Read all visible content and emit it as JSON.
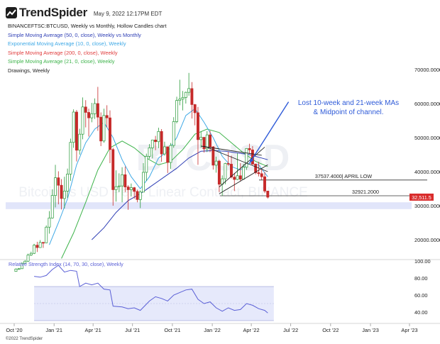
{
  "header": {
    "brand": "TrendSpider",
    "date": "May 9, 2022 12:17PM EDT"
  },
  "legend": {
    "symbol_line": "BINANCEFTSC:BTCUSD, Weekly vs Monthly, Hollow Candles chart",
    "indicators": [
      {
        "label": "Simple Moving Average (50, 0, close), Weekly vs Monthly",
        "color": "#2f3fb5"
      },
      {
        "label": "Exponential Moving Average (10, 0, close), Weekly",
        "color": "#3fa9e6"
      },
      {
        "label": "Simple Moving Average (200, 0, close), Weekly",
        "color": "#e03c3c"
      },
      {
        "label": "Simple Moving Average (21, 0, close), Weekly",
        "color": "#3db34a"
      },
      {
        "label": "Drawings, Weekly",
        "color": "#222222"
      }
    ]
  },
  "watermark": {
    "main": "BTCUSD",
    "sub": "Bitcoin vs USD Perp. Linear Contract, BINANCE"
  },
  "annotation": {
    "text_line1": "Lost 10-week and 21-week MAs",
    "text_line2": "& Midpoint of channel.",
    "color": "#2f5bd8"
  },
  "levels": [
    {
      "value": 37537.4,
      "label": "37537.4000| APRIL LOW"
    },
    {
      "value": 32921.2,
      "label": "32921.2000"
    }
  ],
  "last_price": {
    "label": "32,511.5",
    "value": 32511.5,
    "color": "#d92b2b"
  },
  "rsi_title": "Relative Strength Index (14, 70, 30, close), Weekly",
  "copyright": "©2022 TrendSpider",
  "colors": {
    "up": "#2a9a3a",
    "down": "#c62a2a",
    "sma50": "#2f3fb5",
    "ema10": "#3fa9e6",
    "sma21": "#3db34a",
    "rsi": "#5a5fd6",
    "band": "#e1e5fa"
  },
  "chart_data": {
    "type": "candlestick",
    "timeframe": "Weekly",
    "x_ticks": [
      "Oct '20",
      "Jan '21",
      "Apr '21",
      "Jul '21",
      "Oct '21",
      "Jan '22",
      "Apr '22",
      "Jul '22",
      "Oct '22",
      "Jan '23",
      "Apr '23"
    ],
    "price_ticks": [
      "70000.0000",
      "60000.0000",
      "50000.0000",
      "40000.0000",
      "30000.0000",
      "20000.0000"
    ],
    "price_tick_values": [
      70000,
      60000,
      50000,
      40000,
      30000,
      20000
    ],
    "ylim": [
      10000,
      77000
    ],
    "rsi_ticks": [
      "100.00",
      "80.00",
      "60.00",
      "40.00"
    ],
    "rsi_tick_values": [
      100,
      80,
      60,
      40
    ],
    "rsi_ylim": [
      30,
      100
    ],
    "rsi_band": [
      30,
      70
    ],
    "support_zone": [
      29000,
      31000
    ],
    "candles": [
      {
        "x": "2020-10-05",
        "o": 10700,
        "h": 11600,
        "l": 10600,
        "c": 11400
      },
      {
        "x": "2020-10-12",
        "o": 11400,
        "h": 11700,
        "l": 11200,
        "c": 11500
      },
      {
        "x": "2020-10-19",
        "o": 11500,
        "h": 13300,
        "l": 11400,
        "c": 13100
      },
      {
        "x": "2020-10-26",
        "o": 13100,
        "h": 14000,
        "l": 12900,
        "c": 13700
      },
      {
        "x": "2020-11-02",
        "o": 13700,
        "h": 15900,
        "l": 13500,
        "c": 15500
      },
      {
        "x": "2020-11-09",
        "o": 15500,
        "h": 16500,
        "l": 15200,
        "c": 16000
      },
      {
        "x": "2020-11-16",
        "o": 16000,
        "h": 18800,
        "l": 15800,
        "c": 18400
      },
      {
        "x": "2020-11-23",
        "o": 18400,
        "h": 19400,
        "l": 16400,
        "c": 17700
      },
      {
        "x": "2020-11-30",
        "o": 17700,
        "h": 19900,
        "l": 17600,
        "c": 19200
      },
      {
        "x": "2020-12-07",
        "o": 19200,
        "h": 19400,
        "l": 17600,
        "c": 19100
      },
      {
        "x": "2020-12-14",
        "o": 19100,
        "h": 24200,
        "l": 19000,
        "c": 23700
      },
      {
        "x": "2020-12-21",
        "o": 23700,
        "h": 28400,
        "l": 21800,
        "c": 26400
      },
      {
        "x": "2020-12-28",
        "o": 26400,
        "h": 34800,
        "l": 26200,
        "c": 33000
      },
      {
        "x": "2021-01-04",
        "o": 33000,
        "h": 42000,
        "l": 29500,
        "c": 38200
      },
      {
        "x": "2021-01-11",
        "o": 38200,
        "h": 40100,
        "l": 30400,
        "c": 36000
      },
      {
        "x": "2021-01-18",
        "o": 36000,
        "h": 37800,
        "l": 28900,
        "c": 32100
      },
      {
        "x": "2021-01-25",
        "o": 32100,
        "h": 38500,
        "l": 29200,
        "c": 34300
      },
      {
        "x": "2021-02-01",
        "o": 34300,
        "h": 40900,
        "l": 32300,
        "c": 39300
      },
      {
        "x": "2021-02-08",
        "o": 39300,
        "h": 49700,
        "l": 37300,
        "c": 48600
      },
      {
        "x": "2021-02-15",
        "o": 48600,
        "h": 58300,
        "l": 47000,
        "c": 57500
      },
      {
        "x": "2021-02-22",
        "o": 57500,
        "h": 58100,
        "l": 43000,
        "c": 46300
      },
      {
        "x": "2021-03-01",
        "o": 46300,
        "h": 52600,
        "l": 45000,
        "c": 51000
      },
      {
        "x": "2021-03-08",
        "o": 51000,
        "h": 61800,
        "l": 49500,
        "c": 59000
      },
      {
        "x": "2021-03-15",
        "o": 59000,
        "h": 61000,
        "l": 53000,
        "c": 57400
      },
      {
        "x": "2021-03-22",
        "o": 57400,
        "h": 58500,
        "l": 50300,
        "c": 55800
      },
      {
        "x": "2021-03-29",
        "o": 55800,
        "h": 60200,
        "l": 54500,
        "c": 57000
      },
      {
        "x": "2021-04-05",
        "o": 57000,
        "h": 61500,
        "l": 55500,
        "c": 60000
      },
      {
        "x": "2021-04-12",
        "o": 60000,
        "h": 64900,
        "l": 52000,
        "c": 56000
      },
      {
        "x": "2021-04-19",
        "o": 56000,
        "h": 57400,
        "l": 47500,
        "c": 49000
      },
      {
        "x": "2021-04-26",
        "o": 49000,
        "h": 58500,
        "l": 48500,
        "c": 56500
      },
      {
        "x": "2021-05-03",
        "o": 56500,
        "h": 59500,
        "l": 53000,
        "c": 55800
      },
      {
        "x": "2021-05-10",
        "o": 55800,
        "h": 58000,
        "l": 42500,
        "c": 46500
      },
      {
        "x": "2021-05-17",
        "o": 46500,
        "h": 47000,
        "l": 30000,
        "c": 34700
      },
      {
        "x": "2021-05-24",
        "o": 34700,
        "h": 40400,
        "l": 31200,
        "c": 35600
      },
      {
        "x": "2021-05-31",
        "o": 35600,
        "h": 39500,
        "l": 34000,
        "c": 35800
      },
      {
        "x": "2021-06-07",
        "o": 35800,
        "h": 41300,
        "l": 31000,
        "c": 39100
      },
      {
        "x": "2021-06-14",
        "o": 39100,
        "h": 41500,
        "l": 34000,
        "c": 35500
      },
      {
        "x": "2021-06-21",
        "o": 35500,
        "h": 36000,
        "l": 28800,
        "c": 34700
      },
      {
        "x": "2021-06-28",
        "o": 34700,
        "h": 36500,
        "l": 32700,
        "c": 35300
      },
      {
        "x": "2021-07-05",
        "o": 35300,
        "h": 35500,
        "l": 32100,
        "c": 34200
      },
      {
        "x": "2021-07-12",
        "o": 34200,
        "h": 34700,
        "l": 31000,
        "c": 31800
      },
      {
        "x": "2021-07-19",
        "o": 31800,
        "h": 34500,
        "l": 29300,
        "c": 34000
      },
      {
        "x": "2021-07-26",
        "o": 34000,
        "h": 42500,
        "l": 34000,
        "c": 39800
      },
      {
        "x": "2021-08-02",
        "o": 39800,
        "h": 45300,
        "l": 37300,
        "c": 44500
      },
      {
        "x": "2021-08-09",
        "o": 44500,
        "h": 48100,
        "l": 43800,
        "c": 47000
      },
      {
        "x": "2021-08-16",
        "o": 47000,
        "h": 49400,
        "l": 43900,
        "c": 49300
      },
      {
        "x": "2021-08-23",
        "o": 49300,
        "h": 50500,
        "l": 46300,
        "c": 48800
      },
      {
        "x": "2021-08-30",
        "o": 48800,
        "h": 52900,
        "l": 46900,
        "c": 51800
      },
      {
        "x": "2021-09-06",
        "o": 51800,
        "h": 52500,
        "l": 42900,
        "c": 45200
      },
      {
        "x": "2021-09-13",
        "o": 45200,
        "h": 48800,
        "l": 44700,
        "c": 47300
      },
      {
        "x": "2021-09-20",
        "o": 47300,
        "h": 47300,
        "l": 39600,
        "c": 42700
      },
      {
        "x": "2021-09-27",
        "o": 42700,
        "h": 48400,
        "l": 40800,
        "c": 47700
      },
      {
        "x": "2021-10-04",
        "o": 47700,
        "h": 56000,
        "l": 47000,
        "c": 54700
      },
      {
        "x": "2021-10-11",
        "o": 54700,
        "h": 62000,
        "l": 54200,
        "c": 60900
      },
      {
        "x": "2021-10-18",
        "o": 60900,
        "h": 67000,
        "l": 59500,
        "c": 61300
      },
      {
        "x": "2021-10-25",
        "o": 61300,
        "h": 63700,
        "l": 58000,
        "c": 61800
      },
      {
        "x": "2021-11-01",
        "o": 61800,
        "h": 63500,
        "l": 60000,
        "c": 63300
      },
      {
        "x": "2021-11-08",
        "o": 63300,
        "h": 69000,
        "l": 62300,
        "c": 64400
      },
      {
        "x": "2021-11-15",
        "o": 64400,
        "h": 66300,
        "l": 55600,
        "c": 59700
      },
      {
        "x": "2021-11-22",
        "o": 59700,
        "h": 59900,
        "l": 53600,
        "c": 57300
      },
      {
        "x": "2021-11-29",
        "o": 57300,
        "h": 59000,
        "l": 42000,
        "c": 49400
      },
      {
        "x": "2021-12-06",
        "o": 49400,
        "h": 51900,
        "l": 47000,
        "c": 50100
      },
      {
        "x": "2021-12-13",
        "o": 50100,
        "h": 49600,
        "l": 45600,
        "c": 46700
      },
      {
        "x": "2021-12-20",
        "o": 46700,
        "h": 51900,
        "l": 45800,
        "c": 50800
      },
      {
        "x": "2021-12-27",
        "o": 50800,
        "h": 52000,
        "l": 45700,
        "c": 47300
      },
      {
        "x": "2022-01-03",
        "o": 47300,
        "h": 47500,
        "l": 40600,
        "c": 41900
      },
      {
        "x": "2022-01-10",
        "o": 41900,
        "h": 44400,
        "l": 39700,
        "c": 43100
      },
      {
        "x": "2022-01-17",
        "o": 43100,
        "h": 43500,
        "l": 34000,
        "c": 36300
      },
      {
        "x": "2022-01-24",
        "o": 36300,
        "h": 38900,
        "l": 32900,
        "c": 37900
      },
      {
        "x": "2022-01-31",
        "o": 37900,
        "h": 42600,
        "l": 36300,
        "c": 42400
      },
      {
        "x": "2022-02-07",
        "o": 42400,
        "h": 45800,
        "l": 41700,
        "c": 42200
      },
      {
        "x": "2022-02-14",
        "o": 42200,
        "h": 44700,
        "l": 38000,
        "c": 38400
      },
      {
        "x": "2022-02-21",
        "o": 38400,
        "h": 39600,
        "l": 34300,
        "c": 37700
      },
      {
        "x": "2022-02-28",
        "o": 37700,
        "h": 45400,
        "l": 37500,
        "c": 38800
      },
      {
        "x": "2022-03-07",
        "o": 38800,
        "h": 42500,
        "l": 37100,
        "c": 37800
      },
      {
        "x": "2022-03-14",
        "o": 37800,
        "h": 42300,
        "l": 37600,
        "c": 41300
      },
      {
        "x": "2022-03-21",
        "o": 41300,
        "h": 46900,
        "l": 40500,
        "c": 46800
      },
      {
        "x": "2022-03-28",
        "o": 46800,
        "h": 48200,
        "l": 45200,
        "c": 46400
      },
      {
        "x": "2022-04-04",
        "o": 46400,
        "h": 47500,
        "l": 42000,
        "c": 42200
      },
      {
        "x": "2022-04-11",
        "o": 42200,
        "h": 42400,
        "l": 39200,
        "c": 39700
      },
      {
        "x": "2022-04-18",
        "o": 39700,
        "h": 42900,
        "l": 38600,
        "c": 39400
      },
      {
        "x": "2022-04-25",
        "o": 39400,
        "h": 40800,
        "l": 37600,
        "c": 38500
      },
      {
        "x": "2022-05-02",
        "o": 38500,
        "h": 39900,
        "l": 33700,
        "c": 34300
      },
      {
        "x": "2022-05-09",
        "o": 34300,
        "h": 34400,
        "l": 32100,
        "c": 32500
      }
    ],
    "sma50": [
      {
        "x": "2021-03-29",
        "y": 20000
      },
      {
        "x": "2021-04-26",
        "y": 23500
      },
      {
        "x": "2021-05-24",
        "y": 28000
      },
      {
        "x": "2021-06-21",
        "y": 31500
      },
      {
        "x": "2021-07-19",
        "y": 33500
      },
      {
        "x": "2021-08-16",
        "y": 36000
      },
      {
        "x": "2021-09-13",
        "y": 38500
      },
      {
        "x": "2021-10-11",
        "y": 41000
      },
      {
        "x": "2021-11-08",
        "y": 44000
      },
      {
        "x": "2021-12-06",
        "y": 46000
      },
      {
        "x": "2022-01-03",
        "y": 46200
      },
      {
        "x": "2022-01-31",
        "y": 46000
      },
      {
        "x": "2022-02-28",
        "y": 45500
      },
      {
        "x": "2022-03-28",
        "y": 45000
      },
      {
        "x": "2022-04-25",
        "y": 44000
      },
      {
        "x": "2022-05-09",
        "y": 43500
      }
    ],
    "ema10": [
      {
        "x": "2020-12-21",
        "y": 18500
      },
      {
        "x": "2021-01-11",
        "y": 25000
      },
      {
        "x": "2021-02-01",
        "y": 32000
      },
      {
        "x": "2021-02-22",
        "y": 42000
      },
      {
        "x": "2021-03-15",
        "y": 48500
      },
      {
        "x": "2021-04-05",
        "y": 52500
      },
      {
        "x": "2021-04-26",
        "y": 54500
      },
      {
        "x": "2021-05-17",
        "y": 50000
      },
      {
        "x": "2021-06-07",
        "y": 43500
      },
      {
        "x": "2021-06-28",
        "y": 38500
      },
      {
        "x": "2021-07-19",
        "y": 35000
      },
      {
        "x": "2021-08-09",
        "y": 38500
      },
      {
        "x": "2021-08-30",
        "y": 44000
      },
      {
        "x": "2021-09-20",
        "y": 46000
      },
      {
        "x": "2021-10-11",
        "y": 50000
      },
      {
        "x": "2021-11-01",
        "y": 56500
      },
      {
        "x": "2021-11-22",
        "y": 58500
      },
      {
        "x": "2021-12-13",
        "y": 54500
      },
      {
        "x": "2022-01-03",
        "y": 50000
      },
      {
        "x": "2022-01-24",
        "y": 44500
      },
      {
        "x": "2022-02-14",
        "y": 41500
      },
      {
        "x": "2022-03-07",
        "y": 40500
      },
      {
        "x": "2022-03-28",
        "y": 42500
      },
      {
        "x": "2022-04-18",
        "y": 42000
      },
      {
        "x": "2022-05-09",
        "y": 38500
      }
    ],
    "sma21": [
      {
        "x": "2021-01-18",
        "y": 14500
      },
      {
        "x": "2021-02-15",
        "y": 22000
      },
      {
        "x": "2021-03-15",
        "y": 31000
      },
      {
        "x": "2021-04-12",
        "y": 40500
      },
      {
        "x": "2021-05-10",
        "y": 47000
      },
      {
        "x": "2021-06-07",
        "y": 49000
      },
      {
        "x": "2021-07-05",
        "y": 47000
      },
      {
        "x": "2021-08-02",
        "y": 44000
      },
      {
        "x": "2021-08-30",
        "y": 42000
      },
      {
        "x": "2021-09-27",
        "y": 43000
      },
      {
        "x": "2021-10-25",
        "y": 46500
      },
      {
        "x": "2021-11-22",
        "y": 51000
      },
      {
        "x": "2021-12-20",
        "y": 52500
      },
      {
        "x": "2022-01-17",
        "y": 51500
      },
      {
        "x": "2022-02-14",
        "y": 48500
      },
      {
        "x": "2022-03-14",
        "y": 45500
      },
      {
        "x": "2022-04-11",
        "y": 43000
      },
      {
        "x": "2022-05-09",
        "y": 41500
      }
    ],
    "channel_lines": [
      {
        "x1": "2021-12-06",
        "y1": 47500,
        "x2": "2022-04-25",
        "y2": 44800
      },
      {
        "x1": "2022-01-17",
        "y1": 35500,
        "x2": "2022-05-02",
        "y2": 47200
      },
      {
        "x1": "2022-01-17",
        "y1": 33500,
        "x2": "2022-05-09",
        "y2": 42000
      },
      {
        "x1": "2021-12-13",
        "y1": 47500,
        "x2": "2022-05-09",
        "y2": 40000
      }
    ],
    "arrow": {
      "x1": "2022-06-26",
      "y1": 60500,
      "x2": "2022-03-28",
      "y2": 42500
    },
    "rsi": [
      {
        "x": "2020-11-16",
        "y": 82
      },
      {
        "x": "2020-11-30",
        "y": 81
      },
      {
        "x": "2020-12-14",
        "y": 83
      },
      {
        "x": "2020-12-28",
        "y": 90
      },
      {
        "x": "2021-01-11",
        "y": 95
      },
      {
        "x": "2021-01-25",
        "y": 87
      },
      {
        "x": "2021-02-08",
        "y": 89
      },
      {
        "x": "2021-02-22",
        "y": 88
      },
      {
        "x": "2021-03-01",
        "y": 70
      },
      {
        "x": "2021-03-15",
        "y": 74
      },
      {
        "x": "2021-03-29",
        "y": 72
      },
      {
        "x": "2021-04-12",
        "y": 74
      },
      {
        "x": "2021-04-26",
        "y": 67
      },
      {
        "x": "2021-05-10",
        "y": 66
      },
      {
        "x": "2021-05-17",
        "y": 47
      },
      {
        "x": "2021-06-07",
        "y": 46
      },
      {
        "x": "2021-06-21",
        "y": 44
      },
      {
        "x": "2021-07-05",
        "y": 45
      },
      {
        "x": "2021-07-19",
        "y": 42
      },
      {
        "x": "2021-08-09",
        "y": 53
      },
      {
        "x": "2021-08-23",
        "y": 58
      },
      {
        "x": "2021-09-06",
        "y": 56
      },
      {
        "x": "2021-09-20",
        "y": 53
      },
      {
        "x": "2021-10-04",
        "y": 60
      },
      {
        "x": "2021-10-18",
        "y": 63
      },
      {
        "x": "2021-11-01",
        "y": 66
      },
      {
        "x": "2021-11-15",
        "y": 67
      },
      {
        "x": "2021-11-29",
        "y": 55
      },
      {
        "x": "2021-12-13",
        "y": 50
      },
      {
        "x": "2021-12-27",
        "y": 52
      },
      {
        "x": "2022-01-10",
        "y": 45
      },
      {
        "x": "2022-01-24",
        "y": 41
      },
      {
        "x": "2022-02-07",
        "y": 45
      },
      {
        "x": "2022-02-21",
        "y": 42
      },
      {
        "x": "2022-03-07",
        "y": 43
      },
      {
        "x": "2022-03-21",
        "y": 50
      },
      {
        "x": "2022-04-04",
        "y": 48
      },
      {
        "x": "2022-04-18",
        "y": 44
      },
      {
        "x": "2022-05-02",
        "y": 42
      },
      {
        "x": "2022-05-09",
        "y": 39
      }
    ]
  }
}
